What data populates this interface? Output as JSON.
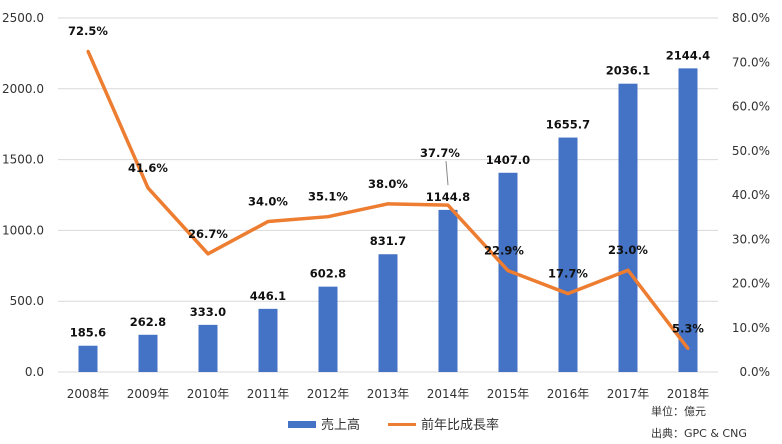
{
  "chart_data": {
    "type": "bar",
    "categories": [
      "2008年",
      "2009年",
      "2010年",
      "2011年",
      "2012年",
      "2013年",
      "2014年",
      "2015年",
      "2016年",
      "2017年",
      "2018年"
    ],
    "series": [
      {
        "name": "売上高",
        "type": "bar",
        "axis": "left",
        "color": "#4472C4",
        "values": [
          185.6,
          262.8,
          333.0,
          446.1,
          602.8,
          831.7,
          1144.8,
          1407.0,
          1655.7,
          2036.1,
          2144.4
        ],
        "labels": [
          "185.6",
          "262.8",
          "333.0",
          "446.1",
          "602.8",
          "831.7",
          "1144.8",
          "1407.0",
          "1655.7",
          "2036.1",
          "2144.4"
        ]
      },
      {
        "name": "前年比成長率",
        "type": "line",
        "axis": "right",
        "color": "#ED7D31",
        "values": [
          72.5,
          41.6,
          26.7,
          34.0,
          35.1,
          38.0,
          37.7,
          22.9,
          17.7,
          23.0,
          5.3
        ],
        "labels": [
          "72.5%",
          "41.6%",
          "26.7%",
          "34.0%",
          "35.1%",
          "38.0%",
          "37.7%",
          "22.9%",
          "17.7%",
          "23.0%",
          "5.3%"
        ]
      }
    ],
    "y_left": {
      "range": [
        0,
        2500
      ],
      "ticks": [
        0,
        500,
        1000,
        1500,
        2000,
        2500
      ],
      "tick_labels": [
        "0.0",
        "500.0",
        "1000.0",
        "1500.0",
        "2000.0",
        "2500.0"
      ]
    },
    "y_right": {
      "range": [
        0,
        80
      ],
      "ticks": [
        0,
        10,
        20,
        30,
        40,
        50,
        60,
        70,
        80
      ],
      "tick_labels": [
        "0.0%",
        "10.0%",
        "20.0%",
        "30.0%",
        "40.0%",
        "50.0%",
        "60.0%",
        "70.0%",
        "80.0%"
      ]
    },
    "grid": true,
    "legend_position": "bottom",
    "notes": [
      "単位：億元",
      "出典：GPC & CNG"
    ]
  }
}
